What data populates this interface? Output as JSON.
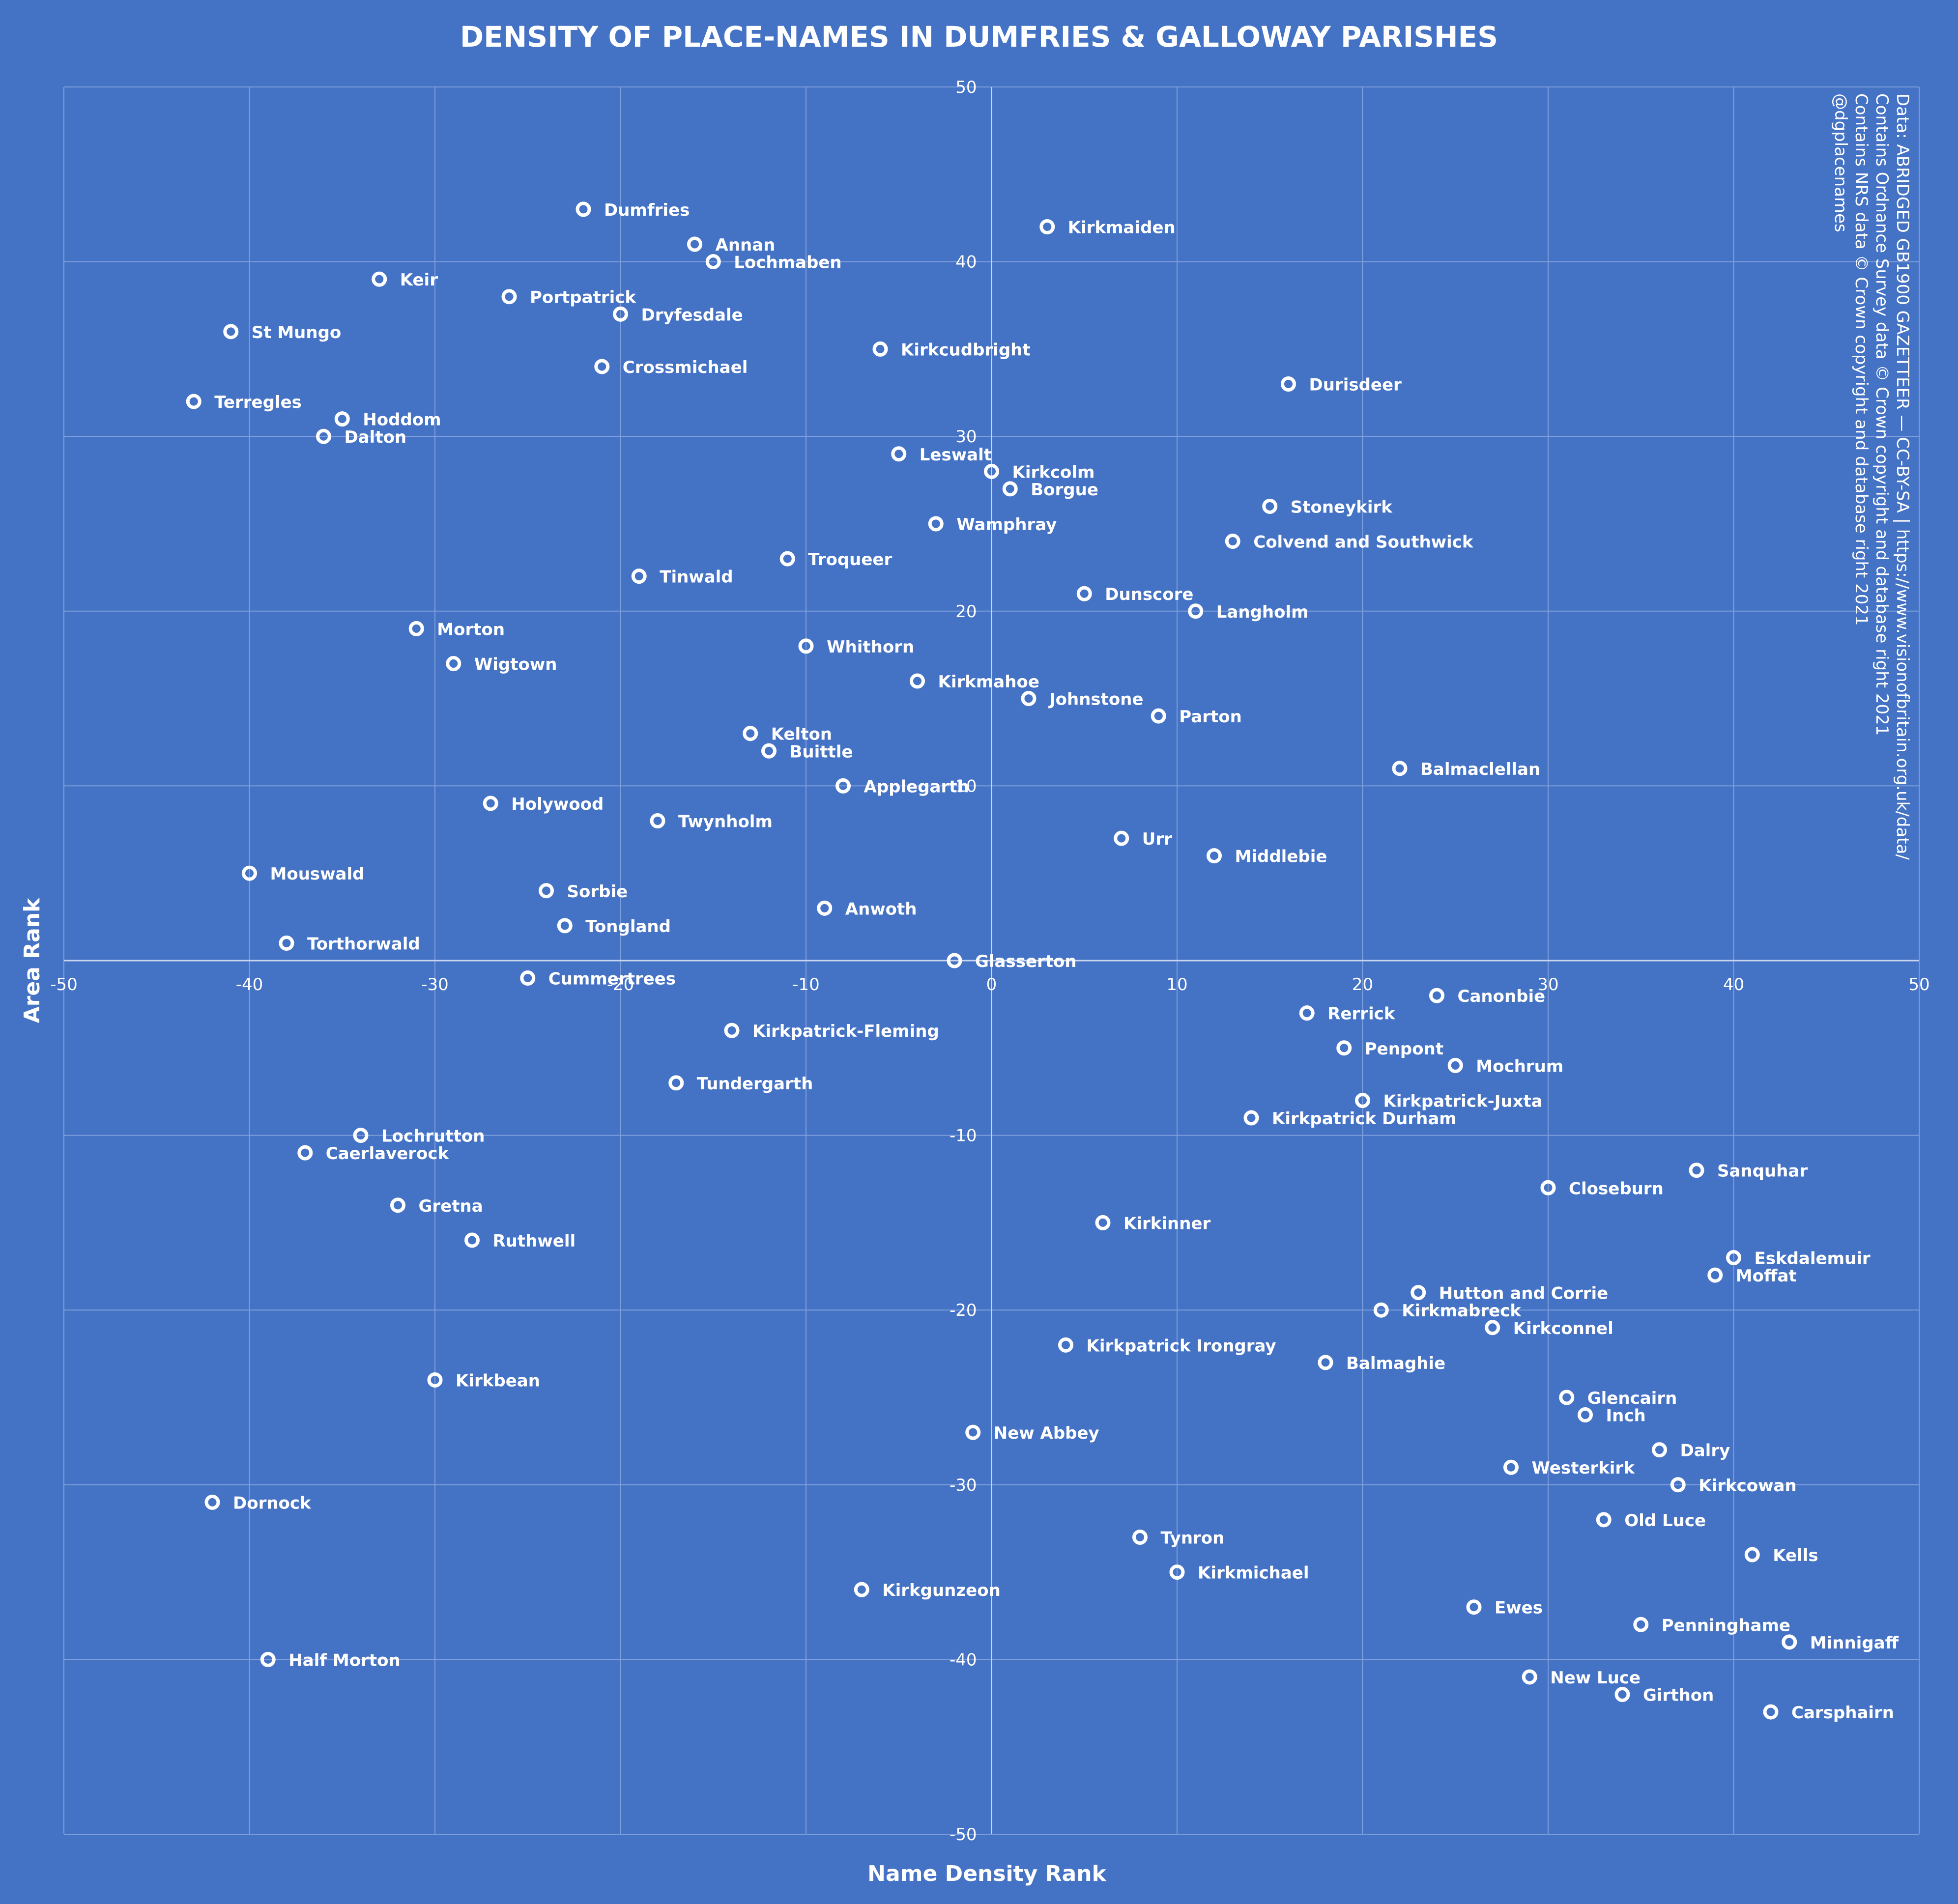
{
  "chart_data": {
    "type": "scatter",
    "title": "DENSITY OF PLACE-NAMES IN DUMFRIES & GALLOWAY PARISHES",
    "xlabel": "Name Density Rank",
    "ylabel": "Area Rank",
    "xlim": [
      -50,
      50
    ],
    "ylim": [
      -50,
      50
    ],
    "xticks": [
      -50,
      -40,
      -30,
      -20,
      -10,
      0,
      10,
      20,
      30,
      40,
      50
    ],
    "yticks": [
      -50,
      -40,
      -30,
      -20,
      -10,
      0,
      10,
      20,
      30,
      40,
      50
    ],
    "grid": true,
    "source_note": [
      "Data: ABRIDGED GB1900 GAZETTEER — CC-BY-SA | https://www.visionofbritain.org.uk/data/",
      "Contains Ordnance Survey data © Crown copyright and database right 2021",
      "Contains NRS data © Crown copyright and database right 2021",
      "@dgplacenames"
    ],
    "colors": {
      "background": "#4472c4",
      "grid": "#7f9fdc",
      "marker": "#ffffff",
      "text": "#ffffff"
    },
    "points": [
      {
        "label": "Dumfries",
        "x": -22,
        "y": 43
      },
      {
        "label": "Kirkmaiden",
        "x": 3,
        "y": 42
      },
      {
        "label": "Annan",
        "x": -16,
        "y": 41
      },
      {
        "label": "Lochmaben",
        "x": -15,
        "y": 40
      },
      {
        "label": "Keir",
        "x": -33,
        "y": 39
      },
      {
        "label": "Portpatrick",
        "x": -26,
        "y": 38
      },
      {
        "label": "Dryfesdale",
        "x": -20,
        "y": 37
      },
      {
        "label": "St Mungo",
        "x": -41,
        "y": 36
      },
      {
        "label": "Kirkcudbright",
        "x": -6,
        "y": 35
      },
      {
        "label": "Crossmichael",
        "x": -21,
        "y": 34
      },
      {
        "label": "Durisdeer",
        "x": 16,
        "y": 33
      },
      {
        "label": "Terregles",
        "x": -43,
        "y": 32
      },
      {
        "label": "Hoddom",
        "x": -35,
        "y": 31
      },
      {
        "label": "Dalton",
        "x": -36,
        "y": 30
      },
      {
        "label": "Leswalt",
        "x": -5,
        "y": 29
      },
      {
        "label": "Kirkcolm",
        "x": 0,
        "y": 28
      },
      {
        "label": "Borgue",
        "x": 1,
        "y": 27
      },
      {
        "label": "Stoneykirk",
        "x": 15,
        "y": 26
      },
      {
        "label": "Wamphray",
        "x": -3,
        "y": 25
      },
      {
        "label": "Colvend and Southwick",
        "x": 13,
        "y": 24
      },
      {
        "label": "Troqueer",
        "x": -11,
        "y": 23
      },
      {
        "label": "Tinwald",
        "x": -19,
        "y": 22
      },
      {
        "label": "Dunscore",
        "x": 5,
        "y": 21
      },
      {
        "label": "Langholm",
        "x": 11,
        "y": 20
      },
      {
        "label": "Morton",
        "x": -31,
        "y": 19
      },
      {
        "label": "Whithorn",
        "x": -10,
        "y": 18
      },
      {
        "label": "Wigtown",
        "x": -29,
        "y": 17
      },
      {
        "label": "Kirkmahoe",
        "x": -4,
        "y": 16
      },
      {
        "label": "Johnstone",
        "x": 2,
        "y": 15
      },
      {
        "label": "Parton",
        "x": 9,
        "y": 14
      },
      {
        "label": "Kelton",
        "x": -13,
        "y": 13
      },
      {
        "label": "Buittle",
        "x": -12,
        "y": 12
      },
      {
        "label": "Balmaclellan",
        "x": 22,
        "y": 11
      },
      {
        "label": "Applegarth",
        "x": -8,
        "y": 10
      },
      {
        "label": "Holywood",
        "x": -27,
        "y": 9
      },
      {
        "label": "Twynholm",
        "x": -18,
        "y": 8
      },
      {
        "label": "Urr",
        "x": 7,
        "y": 7
      },
      {
        "label": "Middlebie",
        "x": 12,
        "y": 6
      },
      {
        "label": "Mouswald",
        "x": -40,
        "y": 5
      },
      {
        "label": "Sorbie",
        "x": -24,
        "y": 4
      },
      {
        "label": "Anwoth",
        "x": -9,
        "y": 3
      },
      {
        "label": "Tongland",
        "x": -23,
        "y": 2
      },
      {
        "label": "Torthorwald",
        "x": -38,
        "y": 1
      },
      {
        "label": "Glasserton",
        "x": -2,
        "y": 0
      },
      {
        "label": "Cummertrees",
        "x": -25,
        "y": -1
      },
      {
        "label": "Canonbie",
        "x": 24,
        "y": -2
      },
      {
        "label": "Rerrick",
        "x": 17,
        "y": -3
      },
      {
        "label": "Kirkpatrick-Fleming",
        "x": -14,
        "y": -4
      },
      {
        "label": "Penpont",
        "x": 19,
        "y": -5
      },
      {
        "label": "Mochrum",
        "x": 25,
        "y": -6
      },
      {
        "label": "Tundergarth",
        "x": -17,
        "y": -7
      },
      {
        "label": "Kirkpatrick-Juxta",
        "x": 20,
        "y": -8
      },
      {
        "label": "Kirkpatrick Durham",
        "x": 14,
        "y": -9
      },
      {
        "label": "Lochrutton",
        "x": -34,
        "y": -10
      },
      {
        "label": "Caerlaverock",
        "x": -37,
        "y": -11
      },
      {
        "label": "Sanquhar",
        "x": 38,
        "y": -12
      },
      {
        "label": "Closeburn",
        "x": 30,
        "y": -13
      },
      {
        "label": "Gretna",
        "x": -32,
        "y": -14
      },
      {
        "label": "Kirkinner",
        "x": 6,
        "y": -15
      },
      {
        "label": "Ruthwell",
        "x": -28,
        "y": -16
      },
      {
        "label": "Eskdalemuir",
        "x": 40,
        "y": -17
      },
      {
        "label": "Moffat",
        "x": 39,
        "y": -18
      },
      {
        "label": "Hutton and Corrie",
        "x": 23,
        "y": -19
      },
      {
        "label": "Kirkmabreck",
        "x": 21,
        "y": -20
      },
      {
        "label": "Kirkconnel",
        "x": 27,
        "y": -21
      },
      {
        "label": "Kirkpatrick Irongray",
        "x": 4,
        "y": -22
      },
      {
        "label": "Balmaghie",
        "x": 18,
        "y": -23
      },
      {
        "label": "Kirkbean",
        "x": -30,
        "y": -24
      },
      {
        "label": "Glencairn",
        "x": 31,
        "y": -25
      },
      {
        "label": "Inch",
        "x": 32,
        "y": -26
      },
      {
        "label": "New Abbey",
        "x": -1,
        "y": -27
      },
      {
        "label": "Dalry",
        "x": 36,
        "y": -28
      },
      {
        "label": "Westerkirk",
        "x": 28,
        "y": -29
      },
      {
        "label": "Kirkcowan",
        "x": 37,
        "y": -30
      },
      {
        "label": "Dornock",
        "x": -42,
        "y": -31
      },
      {
        "label": "Old Luce",
        "x": 33,
        "y": -32
      },
      {
        "label": "Tynron",
        "x": 8,
        "y": -33
      },
      {
        "label": "Kells",
        "x": 41,
        "y": -34
      },
      {
        "label": "Kirkmichael",
        "x": 10,
        "y": -35
      },
      {
        "label": "Kirkgunzeon",
        "x": -7,
        "y": -36
      },
      {
        "label": "Ewes",
        "x": 26,
        "y": -37
      },
      {
        "label": "Penninghame",
        "x": 35,
        "y": -38
      },
      {
        "label": "Minnigaff",
        "x": 43,
        "y": -39
      },
      {
        "label": "Half Morton",
        "x": -39,
        "y": -40
      },
      {
        "label": "New Luce",
        "x": 29,
        "y": -41
      },
      {
        "label": "Girthon",
        "x": 34,
        "y": -42
      },
      {
        "label": "Carsphairn",
        "x": 42,
        "y": -43
      }
    ]
  }
}
